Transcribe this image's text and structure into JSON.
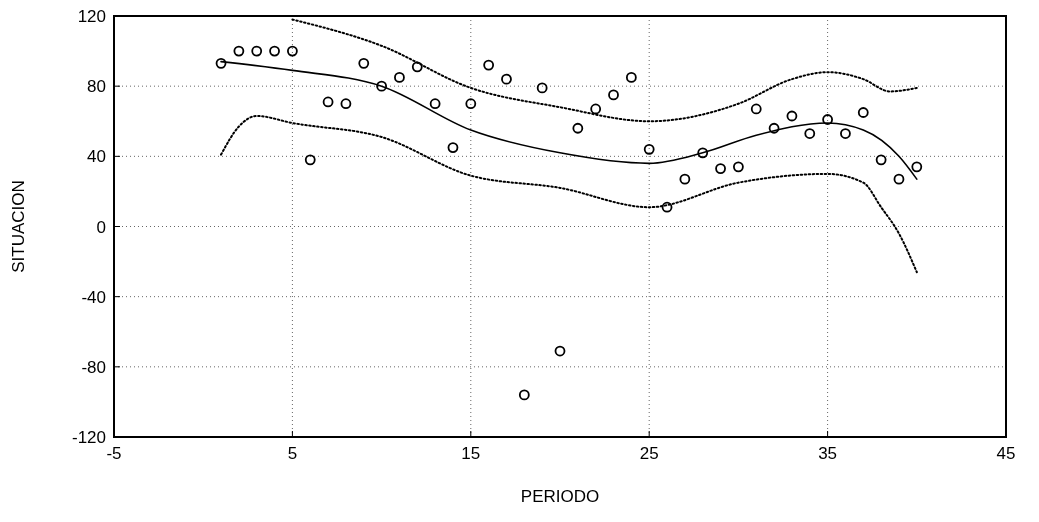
{
  "chart_data": {
    "type": "scatter",
    "xlabel": "PERIODO",
    "ylabel": "SITUACION",
    "xlim": [
      -5,
      45
    ],
    "xticks": [
      -5,
      5,
      15,
      25,
      35,
      45
    ],
    "ylim": [
      -120,
      120
    ],
    "yticks": [
      -120,
      -80,
      -40,
      0,
      40,
      80,
      120
    ],
    "grid": true,
    "series": [
      {
        "color": "#000000",
        "marker": "circle",
        "x": [
          1,
          2,
          3,
          4,
          5,
          6,
          7,
          8,
          9,
          10,
          11,
          12,
          13,
          14,
          15,
          16,
          17,
          18,
          19,
          20,
          21,
          22,
          23,
          24,
          25,
          26,
          27,
          28,
          29,
          30,
          31,
          32,
          33,
          34,
          35,
          36,
          37,
          38,
          39,
          40
        ],
        "values": [
          93,
          100,
          100,
          100,
          100,
          38,
          71,
          70,
          93,
          80,
          85,
          91,
          70,
          45,
          70,
          92,
          84,
          -96,
          79,
          -71,
          56,
          67,
          75,
          85,
          44,
          11,
          27,
          42,
          33,
          34,
          67,
          56,
          63,
          53,
          61,
          53,
          65,
          38,
          27,
          34
        ]
      },
      {
        "type": "line",
        "color": "#000000",
        "line_style": "solid",
        "x": [
          1,
          5,
          10,
          15,
          20,
          25,
          28,
          31,
          35,
          37,
          39,
          40
        ],
        "values": [
          94,
          89,
          80,
          55,
          42,
          36,
          42,
          52,
          59,
          55,
          40,
          27
        ]
      },
      {
        "type": "line",
        "color": "#000000",
        "line_style": "dotted",
        "x": [
          5,
          10,
          15,
          20,
          25,
          30,
          33,
          35,
          37,
          38.5,
          40
        ],
        "values": [
          118,
          103,
          79,
          68,
          60,
          70,
          84,
          88,
          84,
          77,
          79
        ]
      },
      {
        "type": "line",
        "color": "#000000",
        "line_style": "dotted",
        "x": [
          1,
          2,
          3,
          5,
          10,
          15,
          20,
          25,
          30,
          35,
          37,
          38,
          39,
          40
        ],
        "values": [
          41,
          57,
          63,
          59,
          51,
          29,
          22,
          11,
          25,
          30,
          25,
          11,
          -4,
          -26
        ]
      }
    ]
  }
}
